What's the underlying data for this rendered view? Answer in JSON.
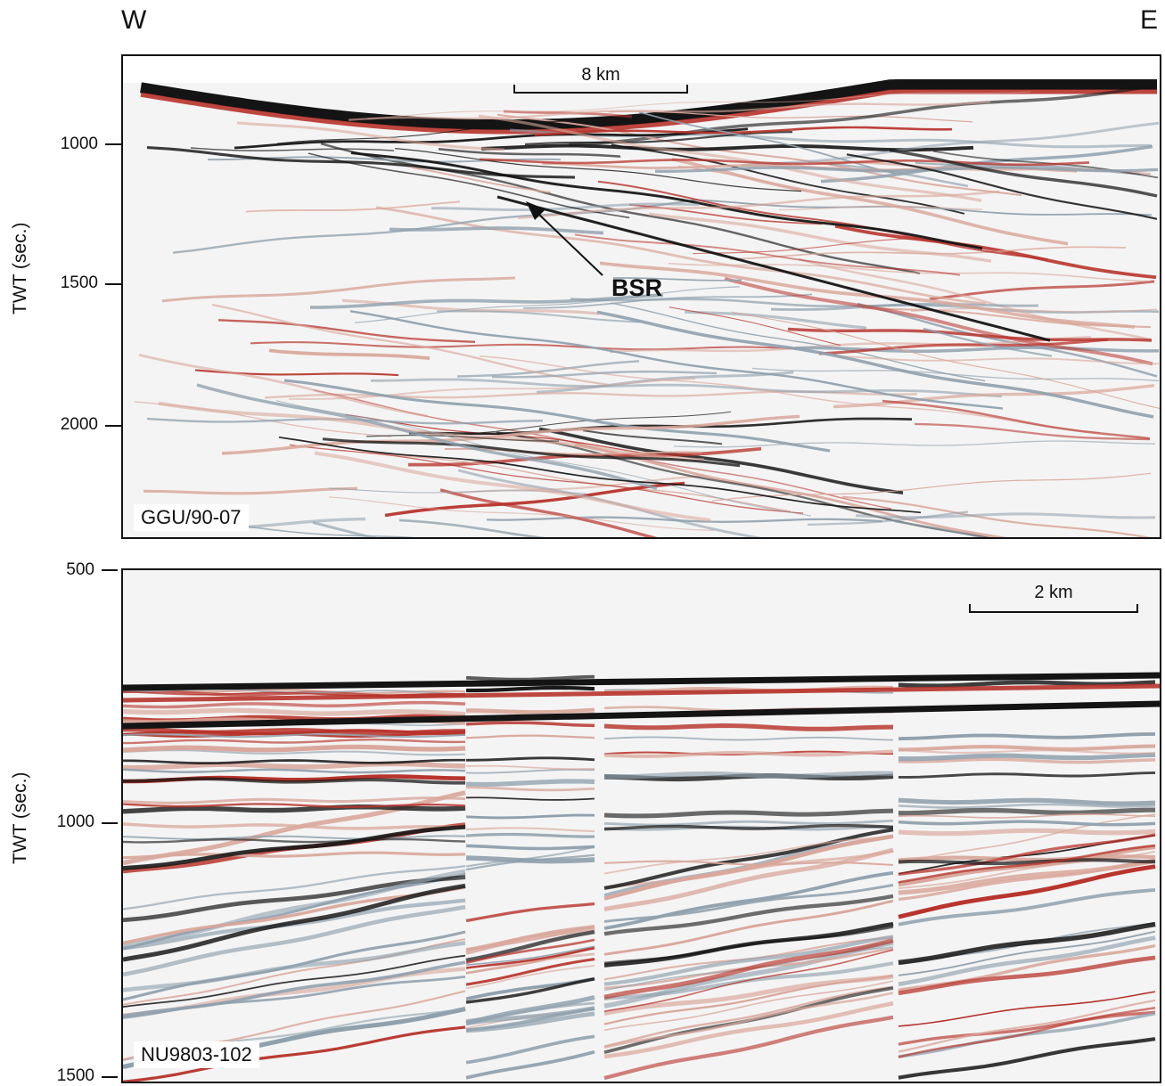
{
  "compass": {
    "west": "W",
    "east": "E"
  },
  "top_panel": {
    "line_id": "GGU/90-07",
    "axis_title": "TWT (sec.)",
    "ticks": [
      "1000",
      "1500",
      "2000"
    ],
    "scale_label": "8 km",
    "annotation": "BSR"
  },
  "bottom_panel": {
    "line_id": "NU9803-102",
    "axis_title": "TWT (sec.)",
    "ticks": [
      "500",
      "1000",
      "1500"
    ],
    "scale_label": "2 km"
  },
  "colors": {
    "trace_red": "#b7332b",
    "trace_black": "#141414",
    "trace_gray": "#8fa0ad",
    "trace_pink": "#d9a79b"
  }
}
